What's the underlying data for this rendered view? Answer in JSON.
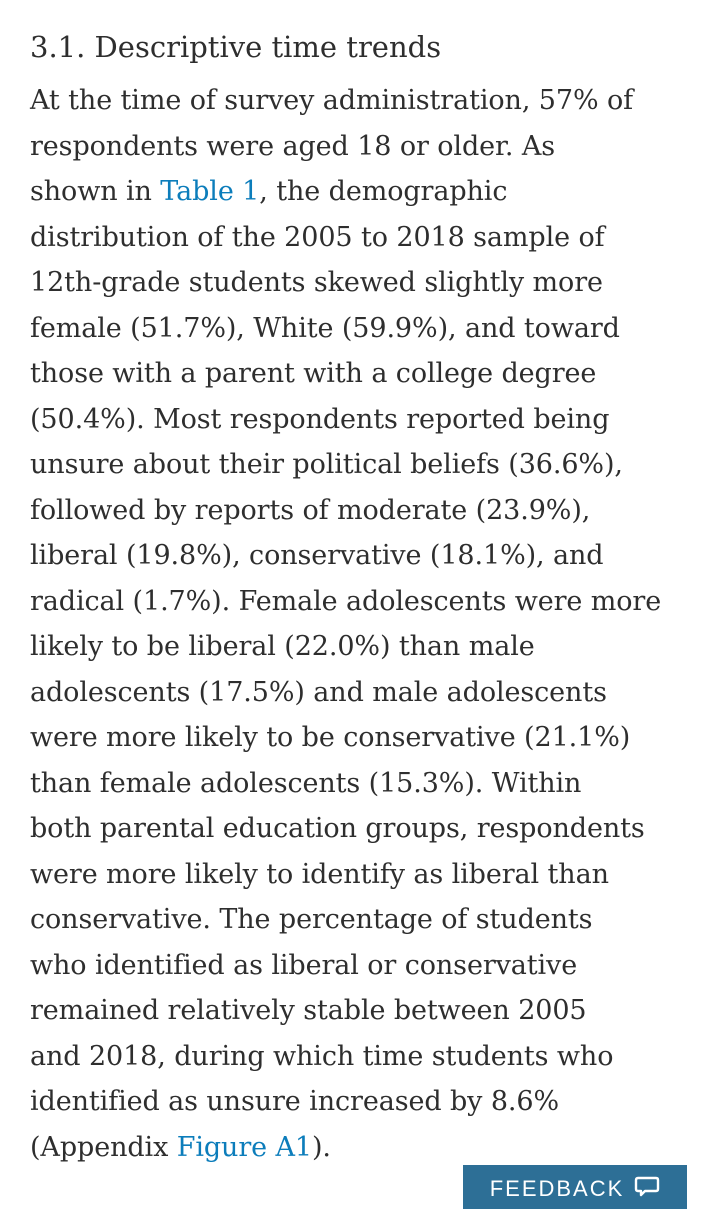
{
  "section": {
    "heading": "3.1. Descriptive time trends"
  },
  "paragraph": {
    "line1": "At the time of survey administration, 57% of",
    "line2": "respondents were aged 18 or older. As",
    "line3_before": "shown in ",
    "line3_link": "Table 1",
    "line3_after": ", the demographic",
    "line4": "distribution of the 2005 to 2018 sample of",
    "line5": "12th-grade students skewed slightly more",
    "line6": "female (51.7%), White (59.9%), and toward",
    "line7": "those with a parent with a college degree",
    "line8": "(50.4%). Most respondents reported being",
    "line9": "unsure about their political beliefs (36.6%),",
    "line10": "followed by reports of moderate (23.9%),",
    "line11": "liberal (19.8%), conservative (18.1%), and",
    "line12": "radical (1.7%). Female adolescents were more",
    "line13": "likely to be liberal (22.0%) than male",
    "line14": "adolescents (17.5%) and male adolescents",
    "line15": "were more likely to be conservative (21.1%)",
    "line16": "than female adolescents (15.3%). Within",
    "line17": "both parental education groups, respondents",
    "line18": "were more likely to identify as liberal than",
    "line19": "conservative. The percentage of students",
    "line20": "who identified as liberal or conservative",
    "line21": "remained relatively stable between 2005",
    "line22": "and 2018, during which time students who",
    "line23": "identified as unsure increased by 8.6%",
    "line24_before": "(Appendix ",
    "line24_link": "Figure A1",
    "line24_after": ")."
  },
  "feedback": {
    "label": "FEEDBACK",
    "icon": "speech-bubble-icon",
    "color": "#2d6f96"
  },
  "colors": {
    "text": "#2e2e2e",
    "link": "#0c7dbb"
  }
}
